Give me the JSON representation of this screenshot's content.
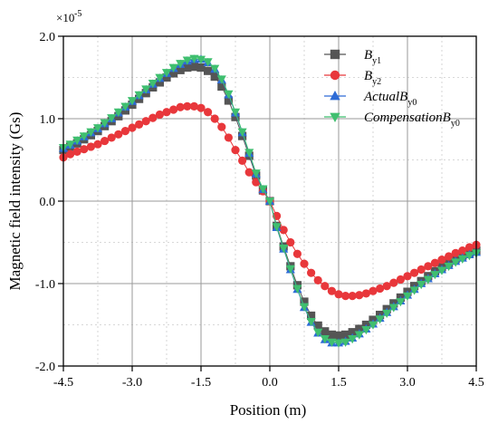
{
  "chart_data": {
    "type": "line",
    "xlabel": "Position (m)",
    "ylabel": "Magnetic field intensity (Gs)",
    "y_scale_label": "×10",
    "y_scale_exponent": "-5",
    "xlim": [
      -4.5,
      4.5
    ],
    "ylim": [
      -2.0,
      2.0
    ],
    "x_ticks": [
      -4.5,
      -3.0,
      -1.5,
      0.0,
      1.5,
      3.0,
      4.5
    ],
    "x_tick_labels": [
      "-4.5",
      "-3.0",
      "-1.5",
      "0.0",
      "1.5",
      "3.0",
      "4.5"
    ],
    "y_ticks": [
      -2.0,
      -1.0,
      0.0,
      1.0,
      2.0
    ],
    "y_tick_labels": [
      "-2.0",
      "-1.0",
      "0.0",
      "1.0",
      "2.0"
    ],
    "grid": true,
    "legend_position": "top-right",
    "x": [
      -4.5,
      -4.35,
      -4.2,
      -4.05,
      -3.9,
      -3.75,
      -3.6,
      -3.45,
      -3.3,
      -3.15,
      -3.0,
      -2.85,
      -2.7,
      -2.55,
      -2.4,
      -2.25,
      -2.1,
      -1.95,
      -1.8,
      -1.65,
      -1.5,
      -1.35,
      -1.2,
      -1.05,
      -0.9,
      -0.75,
      -0.6,
      -0.45,
      -0.3,
      -0.15,
      0.0,
      0.15,
      0.3,
      0.45,
      0.6,
      0.75,
      0.9,
      1.05,
      1.2,
      1.35,
      1.5,
      1.65,
      1.8,
      1.95,
      2.1,
      2.25,
      2.4,
      2.55,
      2.7,
      2.85,
      3.0,
      3.15,
      3.3,
      3.45,
      3.6,
      3.75,
      3.9,
      4.05,
      4.2,
      4.35,
      4.5
    ],
    "series": [
      {
        "name_base": "B",
        "name_sub": "y1",
        "color": "#555555",
        "marker": "square",
        "values": [
          0.62,
          0.66,
          0.7,
          0.75,
          0.8,
          0.85,
          0.91,
          0.97,
          1.03,
          1.1,
          1.17,
          1.24,
          1.31,
          1.38,
          1.44,
          1.5,
          1.55,
          1.59,
          1.62,
          1.63,
          1.62,
          1.58,
          1.51,
          1.39,
          1.22,
          1.02,
          0.79,
          0.55,
          0.31,
          0.13,
          0.0,
          -0.3,
          -0.55,
          -0.79,
          -1.02,
          -1.22,
          -1.39,
          -1.51,
          -1.58,
          -1.62,
          -1.63,
          -1.62,
          -1.59,
          -1.55,
          -1.5,
          -1.44,
          -1.38,
          -1.31,
          -1.24,
          -1.17,
          -1.1,
          -1.03,
          -0.97,
          -0.91,
          -0.85,
          -0.8,
          -0.75,
          -0.7,
          -0.66,
          -0.63,
          -0.6
        ]
      },
      {
        "name_base": "B",
        "name_sub": "y2",
        "color": "#e8373b",
        "marker": "circle",
        "values": [
          0.53,
          0.57,
          0.6,
          0.63,
          0.66,
          0.69,
          0.73,
          0.77,
          0.81,
          0.85,
          0.89,
          0.93,
          0.97,
          1.01,
          1.05,
          1.08,
          1.11,
          1.14,
          1.15,
          1.15,
          1.13,
          1.08,
          1.0,
          0.9,
          0.77,
          0.62,
          0.49,
          0.35,
          0.23,
          0.12,
          0.0,
          -0.18,
          -0.35,
          -0.5,
          -0.64,
          -0.76,
          -0.87,
          -0.96,
          -1.03,
          -1.09,
          -1.13,
          -1.15,
          -1.15,
          -1.14,
          -1.12,
          -1.09,
          -1.06,
          -1.03,
          -0.99,
          -0.95,
          -0.91,
          -0.87,
          -0.83,
          -0.79,
          -0.75,
          -0.71,
          -0.67,
          -0.63,
          -0.6,
          -0.56,
          -0.53
        ]
      },
      {
        "name_base": "ActualB",
        "name_sub": "y0",
        "color": "#2d6bd6",
        "marker": "triangle-up",
        "values": [
          0.64,
          0.68,
          0.73,
          0.78,
          0.83,
          0.88,
          0.94,
          1.0,
          1.07,
          1.14,
          1.21,
          1.28,
          1.35,
          1.42,
          1.49,
          1.55,
          1.61,
          1.66,
          1.7,
          1.72,
          1.72,
          1.68,
          1.6,
          1.47,
          1.29,
          1.07,
          0.83,
          0.58,
          0.33,
          0.14,
          0.0,
          -0.32,
          -0.58,
          -0.83,
          -1.07,
          -1.29,
          -1.47,
          -1.6,
          -1.68,
          -1.72,
          -1.72,
          -1.7,
          -1.66,
          -1.61,
          -1.55,
          -1.49,
          -1.42,
          -1.35,
          -1.28,
          -1.21,
          -1.14,
          -1.07,
          -1.0,
          -0.94,
          -0.88,
          -0.83,
          -0.78,
          -0.73,
          -0.69,
          -0.65,
          -0.62
        ]
      },
      {
        "name_base": "CompensationB",
        "name_sub": "y0",
        "color": "#3fbf6f",
        "marker": "triangle-down",
        "values": [
          0.65,
          0.69,
          0.74,
          0.79,
          0.84,
          0.89,
          0.95,
          1.01,
          1.08,
          1.15,
          1.22,
          1.29,
          1.36,
          1.43,
          1.5,
          1.56,
          1.62,
          1.67,
          1.71,
          1.73,
          1.72,
          1.69,
          1.61,
          1.48,
          1.3,
          1.08,
          0.84,
          0.59,
          0.34,
          0.15,
          0.0,
          -0.31,
          -0.57,
          -0.82,
          -1.06,
          -1.28,
          -1.46,
          -1.59,
          -1.67,
          -1.71,
          -1.72,
          -1.71,
          -1.67,
          -1.62,
          -1.56,
          -1.5,
          -1.43,
          -1.36,
          -1.29,
          -1.22,
          -1.15,
          -1.08,
          -1.01,
          -0.95,
          -0.89,
          -0.84,
          -0.79,
          -0.74,
          -0.7,
          -0.66,
          -0.63
        ]
      }
    ]
  }
}
